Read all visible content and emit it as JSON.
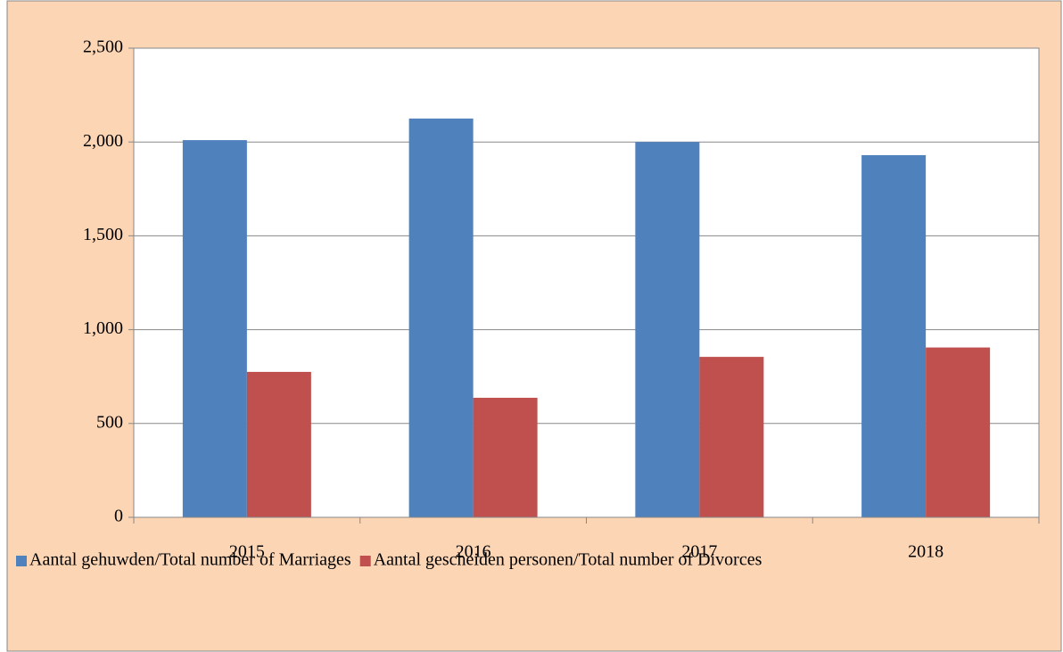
{
  "chart_data": {
    "type": "bar",
    "categories": [
      "2015",
      "2016",
      "2017",
      "2018"
    ],
    "series": [
      {
        "name": "Aantal gehuwden/Total number of Marriages",
        "color": "#4f81bd",
        "values": [
          2010,
          2125,
          2000,
          1930
        ]
      },
      {
        "name": "Aantal gescheiden personen/Total number of Divorces",
        "color": "#c0504d",
        "values": [
          775,
          637,
          855,
          905
        ]
      }
    ],
    "ylim": [
      0,
      2500
    ],
    "yticks": [
      0,
      500,
      {
        "value": 1000,
        "label": "1,000"
      },
      {
        "value": 1500,
        "label": "1,500"
      },
      {
        "value": 2000,
        "label": "2,000"
      },
      {
        "value": 2500,
        "label": "2,500"
      }
    ],
    "grid": true,
    "legend": "bottom"
  }
}
